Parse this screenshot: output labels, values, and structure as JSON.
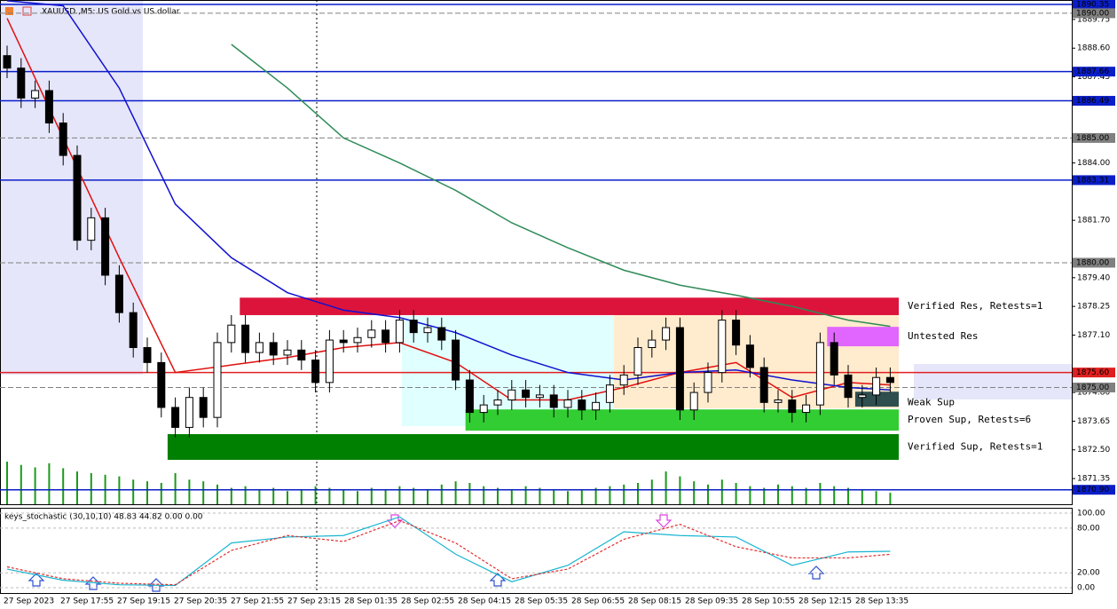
{
  "chart_data": [
    {
      "type": "candlestick",
      "title": "XAUUSD.,M5: US Gold vs US dollar",
      "open": [
        1888.3,
        1887.8,
        1886.6,
        1886.9,
        1885.6,
        1884.3,
        1880.9,
        1881.8,
        1879.5,
        1878.0,
        1876.6,
        1876.0,
        1874.2,
        1873.4,
        1874.6,
        1873.8,
        1876.8,
        1877.5,
        1876.4,
        1876.8,
        1876.3,
        1876.5,
        1876.1,
        1875.2,
        1876.9,
        1876.8,
        1877.0,
        1877.3,
        1876.8,
        1877.7,
        1877.2,
        1877.4,
        1876.9,
        1875.3,
        1874.0,
        1874.3,
        1874.5,
        1874.9,
        1874.6,
        1874.7,
        1874.2,
        1874.5,
        1874.1,
        1874.4,
        1875.1,
        1875.5,
        1876.6,
        1876.9,
        1877.4,
        1874.1,
        1874.8,
        1875.6,
        1877.7,
        1876.7,
        1875.8,
        1874.4,
        1874.5,
        1874.0,
        1874.3,
        1876.8,
        1875.5,
        1874.6,
        1874.7,
        1875.4
      ],
      "high": [
        1888.7,
        1888.2,
        1887.3,
        1887.3,
        1886.0,
        1884.7,
        1882.2,
        1882.2,
        1879.9,
        1878.4,
        1877.0,
        1876.4,
        1874.6,
        1875.0,
        1875.0,
        1877.2,
        1877.9,
        1877.9,
        1877.2,
        1877.2,
        1876.9,
        1876.9,
        1876.5,
        1877.3,
        1877.3,
        1877.4,
        1877.7,
        1877.7,
        1878.1,
        1878.1,
        1877.8,
        1877.8,
        1877.3,
        1875.7,
        1874.7,
        1874.9,
        1875.3,
        1875.3,
        1875.1,
        1875.1,
        1874.9,
        1874.9,
        1874.8,
        1875.5,
        1875.9,
        1877.0,
        1877.3,
        1877.8,
        1877.8,
        1875.2,
        1876.0,
        1878.1,
        1878.1,
        1877.1,
        1876.2,
        1874.9,
        1874.9,
        1874.7,
        1877.2,
        1877.2,
        1875.9,
        1875.1,
        1875.8,
        1875.8
      ],
      "low": [
        1887.4,
        1886.2,
        1886.2,
        1885.2,
        1883.9,
        1880.5,
        1880.5,
        1879.1,
        1877.6,
        1876.2,
        1875.6,
        1873.8,
        1873.0,
        1873.0,
        1873.4,
        1873.4,
        1876.4,
        1876.0,
        1876.0,
        1875.9,
        1875.9,
        1875.7,
        1874.8,
        1874.8,
        1876.4,
        1876.4,
        1876.6,
        1876.4,
        1876.4,
        1876.8,
        1876.8,
        1876.5,
        1874.9,
        1873.6,
        1873.6,
        1873.9,
        1874.1,
        1874.2,
        1874.2,
        1873.8,
        1873.8,
        1873.7,
        1873.7,
        1874.0,
        1874.7,
        1875.1,
        1876.2,
        1876.5,
        1873.7,
        1873.7,
        1874.4,
        1875.2,
        1876.3,
        1875.4,
        1874.0,
        1874.0,
        1873.6,
        1873.6,
        1873.9,
        1875.1,
        1874.2,
        1874.2,
        1874.3,
        1874.8
      ],
      "close": [
        1887.8,
        1886.6,
        1886.9,
        1885.6,
        1884.3,
        1880.9,
        1881.8,
        1879.5,
        1878.0,
        1876.6,
        1876.0,
        1874.2,
        1873.4,
        1874.6,
        1873.8,
        1876.8,
        1877.5,
        1876.4,
        1876.8,
        1876.3,
        1876.5,
        1876.1,
        1875.2,
        1876.9,
        1876.8,
        1877.0,
        1877.3,
        1876.8,
        1877.7,
        1877.2,
        1877.4,
        1876.9,
        1875.3,
        1874.0,
        1874.3,
        1874.5,
        1874.9,
        1874.6,
        1874.7,
        1874.2,
        1874.5,
        1874.1,
        1874.4,
        1875.1,
        1875.5,
        1876.6,
        1876.9,
        1877.4,
        1874.1,
        1874.8,
        1875.6,
        1877.7,
        1876.7,
        1875.8,
        1874.4,
        1874.5,
        1874.0,
        1874.3,
        1876.8,
        1875.5,
        1874.6,
        1874.7,
        1875.4,
        1875.2
      ],
      "volume": [
        52,
        48,
        45,
        50,
        44,
        40,
        38,
        36,
        34,
        30,
        28,
        26,
        38,
        30,
        28,
        24,
        20,
        22,
        18,
        20,
        16,
        18,
        22,
        20,
        18,
        16,
        20,
        18,
        22,
        20,
        18,
        24,
        28,
        26,
        22,
        20,
        18,
        22,
        20,
        18,
        16,
        18,
        20,
        22,
        24,
        26,
        30,
        40,
        34,
        28,
        24,
        30,
        26,
        22,
        20,
        24,
        22,
        20,
        26,
        22,
        20,
        18,
        16,
        14
      ],
      "volume_color": "#1a9a1a",
      "up_color": "#ffffff",
      "down_color": "#000000",
      "ylim": [
        1870.32,
        1890.53
      ],
      "yticks": [
        1889.75,
        {
          "value": 1888.6,
          "label": "1888.60"
        },
        1887.45,
        {
          "value": 1884.0,
          "label": "1884.00"
        },
        {
          "value": 1881.7,
          "label": "1881.70"
        },
        {
          "value": 1879.4,
          "label": "1879.40"
        },
        1878.25,
        {
          "value": 1877.1,
          "label": "1877.10"
        },
        {
          "value": 1874.8,
          "label": "1874.80"
        },
        1873.65,
        {
          "value": 1872.5,
          "label": "1872.50"
        },
        1871.35
      ],
      "levels": [
        {
          "value": 1890.35,
          "label": "1890.35",
          "color": "#0a1ec8",
          "dashed": false
        },
        {
          "value": 1890.0,
          "label": "1890.00",
          "color": "#808080",
          "dashed": true
        },
        {
          "value": 1887.66,
          "label": "1887.66",
          "color": "#0a1ec8",
          "dashed": false
        },
        {
          "value": 1886.49,
          "label": "1886.49",
          "color": "#0a1ec8",
          "dashed": false
        },
        {
          "value": 1885.0,
          "label": "1885.00",
          "color": "#808080",
          "dashed": true
        },
        {
          "value": 1883.31,
          "label": "1883.31",
          "color": "#0a1ec8",
          "dashed": false
        },
        {
          "value": 1880.0,
          "label": "1880.00",
          "color": "#808080",
          "dashed": true
        },
        {
          "value": 1875.6,
          "label": "1875.60",
          "color": "#e02020",
          "dashed": false
        },
        {
          "value": 1875.0,
          "label": "1875.00",
          "color": "#808080",
          "dashed": true
        },
        {
          "value": 1870.9,
          "label": "1870.90",
          "color": "#0a1ec8",
          "dashed": false
        }
      ],
      "zones": [
        {
          "name": "Verified Res, Retests=1",
          "low": 1877.9,
          "high": 1878.6,
          "start": 16.6,
          "color": "#dc143c"
        },
        {
          "name": "Untested Res",
          "low": 1876.65,
          "high": 1877.43,
          "start": 58.5,
          "color": "#e066ff"
        },
        {
          "name": "Weak Sup",
          "low": 1874.23,
          "high": 1874.83,
          "start": 60.5,
          "color": "#2f4f4f"
        },
        {
          "name": "Proven Sup, Retests=6",
          "low": 1873.27,
          "high": 1874.12,
          "start": 32.7,
          "color": "#32cd32"
        },
        {
          "name": "Verified Sup, Retests=1",
          "low": 1872.1,
          "high": 1873.13,
          "start": 11.45,
          "color": "#008000"
        }
      ],
      "ma_x": [
        0,
        4,
        8,
        12,
        16,
        20,
        24,
        28,
        32,
        36,
        40,
        44,
        48,
        52,
        56,
        60,
        63
      ],
      "ma": [
        {
          "color": "#e01010",
          "values": [
            1889.8,
            1885.0,
            1880.2,
            1875.6,
            1875.9,
            1876.2,
            1876.6,
            1876.8,
            1876.0,
            1874.5,
            1874.5,
            1875.0,
            1875.6,
            1876.0,
            1874.6,
            1875.2,
            1875.1
          ]
        },
        {
          "color": "#1010d0",
          "values": [
            1890.5,
            1890.3,
            1887.0,
            1882.35,
            1880.2,
            1878.8,
            1878.1,
            1877.8,
            1877.2,
            1876.3,
            1875.6,
            1875.3,
            1875.6,
            1875.7,
            1875.3,
            1875.0,
            1874.9
          ]
        },
        {
          "color": "#2e8b57",
          "values": [
            null,
            null,
            null,
            null,
            1888.75,
            1887.0,
            1885.0,
            1884.0,
            1882.9,
            1881.6,
            1880.6,
            1879.7,
            1879.1,
            1878.7,
            1878.25,
            1877.7,
            1877.45
          ]
        }
      ],
      "time_labels": [
        "27 Sep 2023",
        "27 Sep 17:55",
        "27 Sep 19:15",
        "27 Sep 20:35",
        "27 Sep 21:55",
        "27 Sep 23:15",
        "28 Sep 01:35",
        "28 Sep 02:55",
        "28 Sep 04:15",
        "28 Sep 05:35",
        "28 Sep 06:55",
        "28 Sep 08:15",
        "28 Sep 09:35",
        "28 Sep 10:55",
        "28 Sep 12:15",
        "28 Sep 13:35"
      ]
    },
    {
      "type": "line",
      "title": "keys_stochastic (30,10,10) 48.83 44.82 0.00 0.00",
      "x": [
        0,
        4,
        8,
        12,
        16,
        20,
        24,
        28,
        32,
        36,
        40,
        44,
        48,
        52,
        56,
        60,
        63
      ],
      "series": [
        {
          "color": "#17b5d0",
          "dashed": false,
          "values": [
            25,
            10,
            4,
            3,
            60,
            68,
            70,
            95,
            45,
            8,
            30,
            75,
            70,
            68,
            30,
            48,
            48.83
          ]
        },
        {
          "color": "#e03030",
          "dashed": true,
          "values": [
            28,
            12,
            6,
            4,
            50,
            70,
            62,
            90,
            60,
            12,
            25,
            65,
            85,
            55,
            40,
            40,
            44.82
          ]
        }
      ],
      "ylim": [
        -7.1,
        106
      ],
      "yticks": [
        {
          "value": 100,
          "label": "100.00"
        },
        {
          "value": 80,
          "label": "80.00"
        },
        {
          "value": 20,
          "label": "20.00"
        },
        {
          "value": 0,
          "label": "0.00"
        }
      ]
    }
  ]
}
